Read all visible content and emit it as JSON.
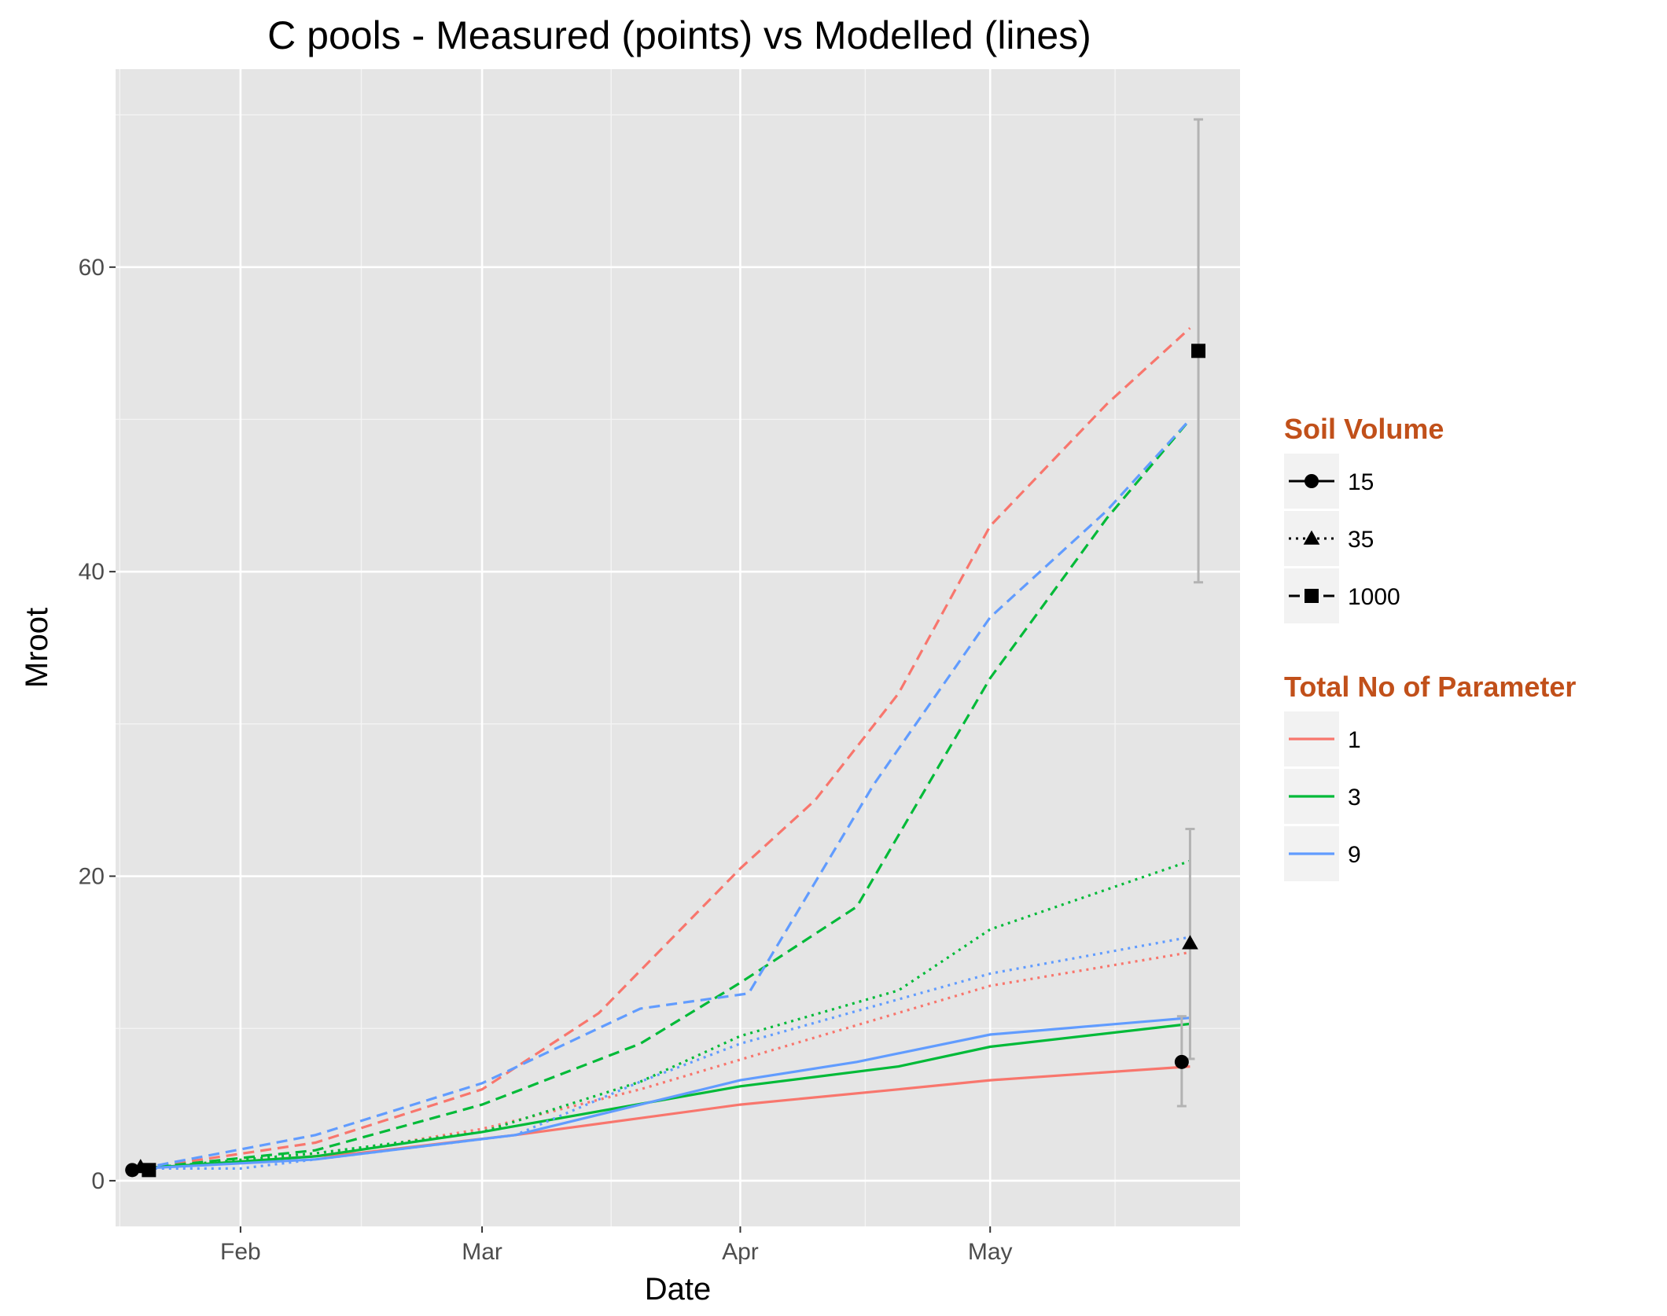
{
  "chart_data": {
    "type": "line",
    "title": "C pools - Measured (points) vs Modelled (lines)",
    "xlabel": "Date",
    "ylabel": "Mroot",
    "x_tick_labels": [
      "Feb",
      "Mar",
      "Apr",
      "May"
    ],
    "x_tick_dates": [
      "2000-02-01",
      "2000-03-01",
      "2000-04-01",
      "2000-05-01"
    ],
    "xlim": [
      "2000-01-17",
      "2000-05-31"
    ],
    "y_ticks": [
      0,
      20,
      40,
      60
    ],
    "ylim": [
      -3,
      73
    ],
    "grid": true,
    "legend_position": "right",
    "legends": {
      "soil_volume": {
        "title": "Soil Volume",
        "items": [
          {
            "label": "15",
            "shape": "circle",
            "linetype": "solid"
          },
          {
            "label": "35",
            "shape": "triangle",
            "linetype": "dotted"
          },
          {
            "label": "1000",
            "shape": "square",
            "linetype": "dashed"
          }
        ]
      },
      "parameters": {
        "title": "Total No of Parameter",
        "items": [
          {
            "label": "1",
            "color": "#f8766d"
          },
          {
            "label": "3",
            "color": "#00ba38"
          },
          {
            "label": "9",
            "color": "#619cff"
          }
        ]
      }
    },
    "series": [
      {
        "parameters": "1",
        "soil_volume": "15",
        "color": "#f8766d",
        "linetype": "solid",
        "points": [
          [
            "2000-01-20",
            0.8
          ],
          [
            "2000-02-15",
            1.8
          ],
          [
            "2000-03-05",
            3.0
          ],
          [
            "2000-04-01",
            5.0
          ],
          [
            "2000-04-20",
            6.0
          ],
          [
            "2000-05-01",
            6.6
          ],
          [
            "2000-05-25",
            7.5
          ]
        ]
      },
      {
        "parameters": "1",
        "soil_volume": "35",
        "color": "#f8766d",
        "linetype": "dotted",
        "points": [
          [
            "2000-01-20",
            0.8
          ],
          [
            "2000-02-10",
            1.6
          ],
          [
            "2000-03-01",
            3.4
          ],
          [
            "2000-03-20",
            6.0
          ],
          [
            "2000-04-05",
            8.6
          ],
          [
            "2000-05-01",
            12.8
          ],
          [
            "2000-05-25",
            15.0
          ]
        ]
      },
      {
        "parameters": "1",
        "soil_volume": "1000",
        "color": "#f8766d",
        "linetype": "dashed",
        "points": [
          [
            "2000-01-20",
            0.8
          ],
          [
            "2000-02-10",
            2.5
          ],
          [
            "2000-03-01",
            6.0
          ],
          [
            "2000-03-15",
            11.0
          ],
          [
            "2000-04-01",
            20.5
          ],
          [
            "2000-04-10",
            25.0
          ],
          [
            "2000-04-20",
            32.0
          ],
          [
            "2000-05-01",
            43.0
          ],
          [
            "2000-05-15",
            51.0
          ],
          [
            "2000-05-25",
            56.0
          ]
        ]
      },
      {
        "parameters": "3",
        "soil_volume": "15",
        "color": "#00ba38",
        "linetype": "solid",
        "points": [
          [
            "2000-01-20",
            0.8
          ],
          [
            "2000-02-10",
            1.6
          ],
          [
            "2000-03-01",
            3.2
          ],
          [
            "2000-04-01",
            6.2
          ],
          [
            "2000-04-20",
            7.5
          ],
          [
            "2000-05-01",
            8.8
          ],
          [
            "2000-05-25",
            10.3
          ]
        ]
      },
      {
        "parameters": "3",
        "soil_volume": "35",
        "color": "#00ba38",
        "linetype": "dotted",
        "points": [
          [
            "2000-01-20",
            0.8
          ],
          [
            "2000-02-10",
            1.8
          ],
          [
            "2000-03-01",
            3.2
          ],
          [
            "2000-03-20",
            6.5
          ],
          [
            "2000-04-01",
            9.5
          ],
          [
            "2000-04-20",
            12.5
          ],
          [
            "2000-05-01",
            16.5
          ],
          [
            "2000-05-25",
            21.0
          ]
        ]
      },
      {
        "parameters": "3",
        "soil_volume": "1000",
        "color": "#00ba38",
        "linetype": "dashed",
        "points": [
          [
            "2000-01-20",
            0.8
          ],
          [
            "2000-02-10",
            2.0
          ],
          [
            "2000-03-01",
            5.0
          ],
          [
            "2000-03-20",
            9.0
          ],
          [
            "2000-04-01",
            13.0
          ],
          [
            "2000-04-15",
            18.0
          ],
          [
            "2000-05-01",
            33.0
          ],
          [
            "2000-05-15",
            43.5
          ],
          [
            "2000-05-25",
            50.0
          ]
        ]
      },
      {
        "parameters": "9",
        "soil_volume": "15",
        "color": "#619cff",
        "linetype": "solid",
        "points": [
          [
            "2000-01-20",
            0.8
          ],
          [
            "2000-02-10",
            1.4
          ],
          [
            "2000-03-05",
            3.0
          ],
          [
            "2000-04-01",
            6.6
          ],
          [
            "2000-04-15",
            7.8
          ],
          [
            "2000-05-01",
            9.6
          ],
          [
            "2000-05-25",
            10.7
          ]
        ]
      },
      {
        "parameters": "9",
        "soil_volume": "35",
        "color": "#619cff",
        "linetype": "dotted",
        "points": [
          [
            "2000-01-20",
            0.8
          ],
          [
            "2000-02-01",
            0.8
          ],
          [
            "2000-03-05",
            3.0
          ],
          [
            "2000-03-20",
            6.5
          ],
          [
            "2000-04-01",
            9.0
          ],
          [
            "2000-05-01",
            13.6
          ],
          [
            "2000-05-25",
            16.0
          ]
        ]
      },
      {
        "parameters": "9",
        "soil_volume": "1000",
        "color": "#619cff",
        "linetype": "dashed",
        "points": [
          [
            "2000-01-20",
            0.8
          ],
          [
            "2000-02-10",
            3.0
          ],
          [
            "2000-03-01",
            6.4
          ],
          [
            "2000-03-20",
            11.3
          ],
          [
            "2000-04-02",
            12.3
          ],
          [
            "2000-04-17",
            26.0
          ],
          [
            "2000-05-01",
            37.0
          ],
          [
            "2000-05-15",
            44.0
          ],
          [
            "2000-05-25",
            50.0
          ]
        ]
      }
    ],
    "measured_points": [
      {
        "soil_volume": "15",
        "shape": "circle",
        "x": "2000-01-19",
        "y": 0.7
      },
      {
        "soil_volume": "35",
        "shape": "triangle",
        "x": "2000-01-20",
        "y": 0.9
      },
      {
        "soil_volume": "1000",
        "shape": "square",
        "x": "2000-01-21",
        "y": 0.7
      },
      {
        "soil_volume": "15",
        "shape": "circle",
        "x": "2000-05-24",
        "y": 7.8,
        "ymin": 4.9,
        "ymax": 10.8
      },
      {
        "soil_volume": "35",
        "shape": "triangle",
        "x": "2000-05-25",
        "y": 15.6,
        "ymin": 8.0,
        "ymax": 23.1
      },
      {
        "soil_volume": "1000",
        "shape": "square",
        "x": "2000-05-26",
        "y": 54.5,
        "ymin": 39.3,
        "ymax": 69.7
      }
    ]
  }
}
